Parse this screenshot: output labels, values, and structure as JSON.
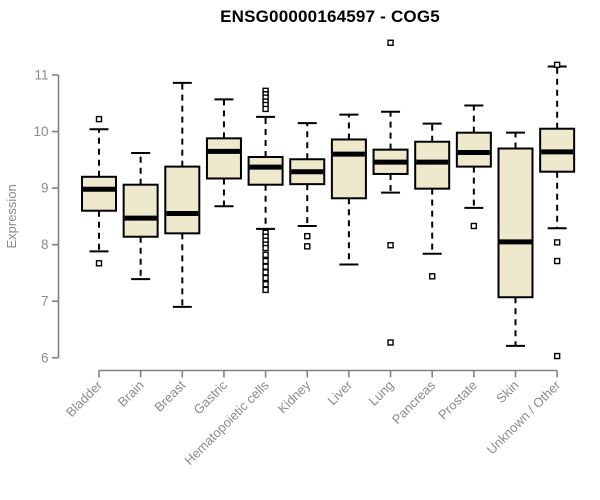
{
  "title": "ENSG00000164597 - COG5",
  "colors": {
    "background": "#ffffff",
    "box_fill": "#EEE8CD",
    "box_stroke": "#000000",
    "median": "#000000",
    "whisker": "#000000",
    "outlier_stroke": "#000000",
    "outlier_fill": "#ffffff",
    "axis": "#828282",
    "tick_label": "#8a8a8a",
    "title": "#000000"
  },
  "chart_data": {
    "type": "boxplot",
    "title": "ENSG00000164597 - COG5",
    "xlabel": "",
    "ylabel": "Expression",
    "ylim": [
      5.8,
      11.8
    ],
    "yticks": [
      6,
      7,
      8,
      9,
      10,
      11
    ],
    "grid": false,
    "legend": "none",
    "categories": [
      "Bladder",
      "Brain",
      "Breast",
      "Gastric",
      "Hematopoietic cells",
      "Kidney",
      "Liver",
      "Lung",
      "Pancreas",
      "Prostate",
      "Skin",
      "Unknown / Other"
    ],
    "boxes": [
      {
        "category": "Bladder",
        "whisker_low": 7.88,
        "q1": 8.6,
        "median": 8.98,
        "q3": 9.2,
        "whisker_high": 10.04,
        "outliers": [
          10.22,
          7.67
        ]
      },
      {
        "category": "Brain",
        "whisker_low": 7.39,
        "q1": 8.14,
        "median": 8.47,
        "q3": 9.06,
        "whisker_high": 9.62,
        "outliers": []
      },
      {
        "category": "Breast",
        "whisker_low": 6.9,
        "q1": 8.2,
        "median": 8.55,
        "q3": 9.38,
        "whisker_high": 10.86,
        "outliers": []
      },
      {
        "category": "Gastric",
        "whisker_low": 8.68,
        "q1": 9.17,
        "median": 9.65,
        "q3": 9.88,
        "whisker_high": 10.57,
        "outliers": []
      },
      {
        "category": "Hematopoietic cells",
        "whisker_low": 8.28,
        "q1": 9.06,
        "median": 9.37,
        "q3": 9.55,
        "whisker_high": 10.26,
        "outliers": [
          10.72,
          10.66,
          10.6,
          10.53,
          10.47,
          10.4,
          8.21,
          8.14,
          8.07,
          8.0,
          7.94,
          7.82,
          7.71,
          7.61,
          7.51,
          7.41,
          7.3,
          7.2
        ]
      },
      {
        "category": "Kidney",
        "whisker_low": 8.33,
        "q1": 9.07,
        "median": 9.29,
        "q3": 9.51,
        "whisker_high": 10.15,
        "outliers": [
          8.15,
          7.97
        ]
      },
      {
        "category": "Liver",
        "whisker_low": 7.65,
        "q1": 8.82,
        "median": 9.6,
        "q3": 9.86,
        "whisker_high": 10.3,
        "outliers": []
      },
      {
        "category": "Lung",
        "whisker_low": 8.92,
        "q1": 9.25,
        "median": 9.46,
        "q3": 9.68,
        "whisker_high": 10.35,
        "outliers": [
          11.57,
          7.99,
          6.27
        ]
      },
      {
        "category": "Pancreas",
        "whisker_low": 7.84,
        "q1": 8.99,
        "median": 9.46,
        "q3": 9.82,
        "whisker_high": 10.14,
        "outliers": [
          7.44
        ]
      },
      {
        "category": "Prostate",
        "whisker_low": 8.65,
        "q1": 9.38,
        "median": 9.63,
        "q3": 9.98,
        "whisker_high": 10.46,
        "outliers": [
          8.33
        ]
      },
      {
        "category": "Skin",
        "whisker_low": 6.21,
        "q1": 7.07,
        "median": 8.05,
        "q3": 9.7,
        "whisker_high": 9.98,
        "outliers": []
      },
      {
        "category": "Unknown / Other",
        "whisker_low": 8.29,
        "q1": 9.29,
        "median": 9.64,
        "q3": 10.05,
        "whisker_high": 11.15,
        "outliers": [
          11.18,
          8.04,
          7.71,
          6.03
        ]
      }
    ]
  }
}
